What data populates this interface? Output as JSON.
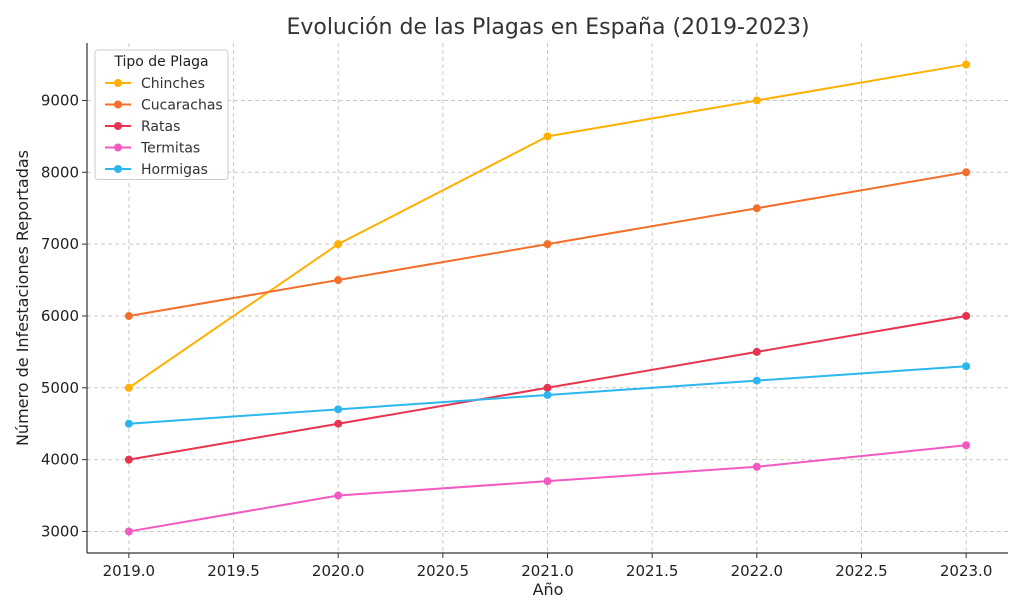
{
  "chart_data": {
    "type": "line",
    "title": "Evolución de las Plagas en España (2019-2023)",
    "xlabel": "Año",
    "ylabel": "Número de Infestaciones Reportadas",
    "x": [
      2019,
      2020,
      2021,
      2022,
      2023
    ],
    "xlim": [
      2018.8,
      2023.2
    ],
    "ylim": [
      2700,
      9800
    ],
    "x_ticks": [
      2019.0,
      2019.5,
      2020.0,
      2020.5,
      2021.0,
      2021.5,
      2022.0,
      2022.5,
      2023.0
    ],
    "x_tick_labels": [
      "2019.0",
      "2019.5",
      "2020.0",
      "2020.5",
      "2021.0",
      "2021.5",
      "2022.0",
      "2022.5",
      "2023.0"
    ],
    "y_ticks": [
      3000,
      4000,
      5000,
      6000,
      7000,
      8000,
      9000
    ],
    "y_tick_labels": [
      "3000",
      "4000",
      "5000",
      "6000",
      "7000",
      "8000",
      "9000"
    ],
    "grid": true,
    "legend": {
      "title": "Tipo de Plaga",
      "placement": "top-left"
    },
    "series": [
      {
        "name": "Chinches",
        "color": "#FFB000",
        "values": [
          5000,
          7000,
          8500,
          9000,
          9500
        ]
      },
      {
        "name": "Cucarachas",
        "color": "#F4702A",
        "values": [
          6000,
          6500,
          7000,
          7500,
          8000
        ]
      },
      {
        "name": "Ratas",
        "color": "#E8344E",
        "values": [
          4000,
          4500,
          5000,
          5500,
          6000
        ]
      },
      {
        "name": "Termitas",
        "color": "#F25AC2",
        "values": [
          3000,
          3500,
          3700,
          3900,
          4200
        ]
      },
      {
        "name": "Hormigas",
        "color": "#2BB7EE",
        "values": [
          4500,
          4700,
          4900,
          5100,
          5300
        ]
      }
    ]
  }
}
